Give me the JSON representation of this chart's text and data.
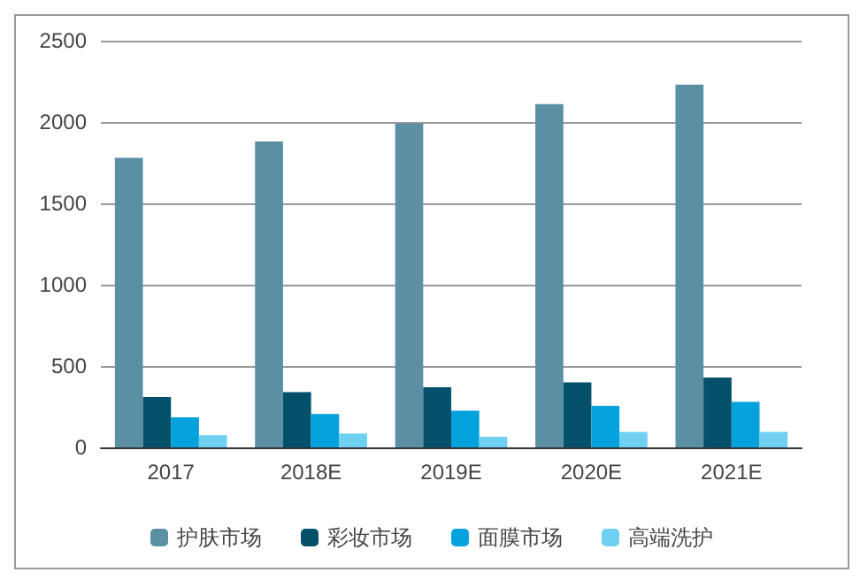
{
  "chart_data": {
    "type": "bar",
    "categories": [
      "2017",
      "2018E",
      "2019E",
      "2020E",
      "2021E"
    ],
    "series": [
      {
        "name": "护肤市场",
        "color": "#5b8fa4",
        "values": [
          1780,
          1880,
          1990,
          2110,
          2230
        ]
      },
      {
        "name": "彩妆市场",
        "color": "#03506a",
        "values": [
          310,
          340,
          370,
          400,
          430
        ]
      },
      {
        "name": "面膜市场",
        "color": "#04a2dc",
        "values": [
          185,
          205,
          225,
          255,
          280
        ]
      },
      {
        "name": "高端洗护",
        "color": "#6fd0f2",
        "values": [
          75,
          85,
          65,
          95,
          95
        ]
      }
    ],
    "ylim": [
      0,
      2500
    ],
    "yticks": [
      0,
      500,
      1000,
      1500,
      2000,
      2500
    ],
    "grid": "y",
    "legend": "bottom"
  }
}
